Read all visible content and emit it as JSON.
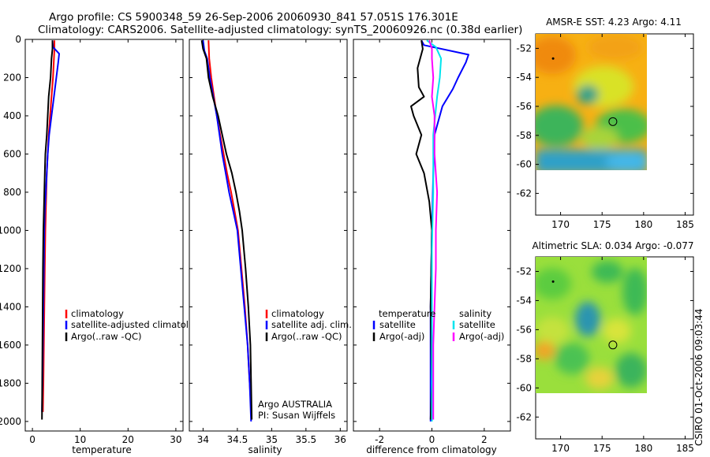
{
  "title": {
    "line1": "Argo profile: CS 5900348_59 26-Sep-2006 20060930_841 57.051S 176.301E",
    "line2": "Climatology: CARS2006. Satellite-adjusted climatology: synTS_20060926.nc (0.38d earlier)"
  },
  "colors": {
    "climatology": "#ff0000",
    "satellite": "#0000ff",
    "argo": "#000000",
    "sat_diff": "#00e5ee",
    "argo_adj": "#ff00ff"
  },
  "chart_data": [
    {
      "type": "line",
      "id": "temperature",
      "xlabel": "temperature",
      "ylim": [
        2050,
        0
      ],
      "xlim": [
        -1.5,
        31.5
      ],
      "xticks": [
        0,
        10,
        20,
        30
      ],
      "xtick_labels": [
        "0",
        "10",
        "20",
        "30"
      ],
      "yticks": [
        0,
        200,
        400,
        600,
        800,
        1000,
        1200,
        1400,
        1600,
        1800,
        2000
      ],
      "ytick_labels": [
        "0",
        "200",
        "400",
        "600",
        "800",
        "1000",
        "1200",
        "1400",
        "1600",
        "1800",
        "2000"
      ],
      "legend": [
        "climatology",
        "satellite-adjusted climatology",
        "Argo(..raw -QC)"
      ],
      "series": [
        {
          "name": "climatology",
          "color": "#ff0000",
          "points": [
            [
              4.6,
              5
            ],
            [
              4.6,
              50
            ],
            [
              4.5,
              100
            ],
            [
              4.3,
              200
            ],
            [
              4.0,
              300
            ],
            [
              3.7,
              400
            ],
            [
              3.4,
              500
            ],
            [
              3.2,
              600
            ],
            [
              3.0,
              700
            ],
            [
              2.9,
              800
            ],
            [
              2.8,
              900
            ],
            [
              2.7,
              1000
            ],
            [
              2.6,
              1200
            ],
            [
              2.5,
              1400
            ],
            [
              2.4,
              1600
            ],
            [
              2.3,
              1800
            ],
            [
              2.2,
              1950
            ]
          ]
        },
        {
          "name": "satellite-adjusted climatology",
          "color": "#0000ff",
          "points": [
            [
              4.2,
              5
            ],
            [
              4.3,
              40
            ],
            [
              5.6,
              75
            ],
            [
              5.4,
              120
            ],
            [
              5.0,
              200
            ],
            [
              4.5,
              300
            ],
            [
              4.0,
              400
            ],
            [
              3.5,
              500
            ],
            [
              3.2,
              600
            ],
            [
              3.0,
              700
            ],
            [
              2.8,
              800
            ],
            [
              2.6,
              900
            ],
            [
              2.5,
              1000
            ],
            [
              2.4,
              1200
            ],
            [
              2.3,
              1400
            ],
            [
              2.2,
              1600
            ],
            [
              2.1,
              1800
            ],
            [
              2.0,
              1950
            ]
          ]
        },
        {
          "name": "Argo(..raw -QC)",
          "color": "#000000",
          "points": [
            [
              4.2,
              5
            ],
            [
              4.2,
              50
            ],
            [
              4.0,
              100
            ],
            [
              3.8,
              200
            ],
            [
              3.4,
              300
            ],
            [
              3.2,
              400
            ],
            [
              3.0,
              500
            ],
            [
              2.7,
              600
            ],
            [
              2.6,
              700
            ],
            [
              2.5,
              800
            ],
            [
              2.4,
              900
            ],
            [
              2.3,
              1000
            ],
            [
              2.2,
              1200
            ],
            [
              2.15,
              1400
            ],
            [
              2.1,
              1600
            ],
            [
              2.05,
              1800
            ],
            [
              2.0,
              1990
            ]
          ]
        }
      ]
    },
    {
      "type": "line",
      "id": "salinity",
      "xlabel": "salinity",
      "ylim": [
        2050,
        0
      ],
      "xlim": [
        33.8,
        36.1
      ],
      "xticks": [
        34,
        34.5,
        35,
        35.5,
        36
      ],
      "xtick_labels": [
        "34",
        "34.5",
        "35",
        "35.5",
        "36"
      ],
      "legend": [
        "climatology",
        "satellite adj. clim.",
        "Argo(..raw -QC)"
      ],
      "annotations": [
        "Argo AUSTRALIA",
        "PI: Susan Wijffels"
      ],
      "series": [
        {
          "name": "climatology",
          "color": "#ff0000",
          "points": [
            [
              34.08,
              5
            ],
            [
              34.09,
              100
            ],
            [
              34.12,
              200
            ],
            [
              34.16,
              300
            ],
            [
              34.2,
              400
            ],
            [
              34.25,
              500
            ],
            [
              34.3,
              600
            ],
            [
              34.35,
              700
            ],
            [
              34.41,
              800
            ],
            [
              34.46,
              900
            ],
            [
              34.51,
              1000
            ],
            [
              34.56,
              1200
            ],
            [
              34.61,
              1400
            ],
            [
              34.65,
              1600
            ],
            [
              34.68,
              1800
            ],
            [
              34.7,
              1930
            ]
          ]
        },
        {
          "name": "satellite adj. clim.",
          "color": "#0000ff",
          "points": [
            [
              34.0,
              5
            ],
            [
              34.02,
              60
            ],
            [
              34.06,
              100
            ],
            [
              34.1,
              200
            ],
            [
              34.15,
              300
            ],
            [
              34.2,
              400
            ],
            [
              34.24,
              500
            ],
            [
              34.28,
              600
            ],
            [
              34.33,
              700
            ],
            [
              34.38,
              800
            ],
            [
              34.44,
              900
            ],
            [
              34.5,
              1000
            ],
            [
              34.55,
              1200
            ],
            [
              34.6,
              1400
            ],
            [
              34.65,
              1600
            ],
            [
              34.68,
              1800
            ],
            [
              34.7,
              2000
            ]
          ]
        },
        {
          "name": "Argo(..raw -QC)",
          "color": "#000000",
          "points": [
            [
              33.98,
              5
            ],
            [
              34.0,
              50
            ],
            [
              34.05,
              100
            ],
            [
              34.08,
              200
            ],
            [
              34.14,
              300
            ],
            [
              34.22,
              400
            ],
            [
              34.28,
              500
            ],
            [
              34.34,
              600
            ],
            [
              34.42,
              700
            ],
            [
              34.48,
              800
            ],
            [
              34.53,
              900
            ],
            [
              34.57,
              1000
            ],
            [
              34.62,
              1200
            ],
            [
              34.66,
              1400
            ],
            [
              34.69,
              1600
            ],
            [
              34.7,
              1800
            ],
            [
              34.71,
              1990
            ]
          ]
        }
      ]
    },
    {
      "type": "line",
      "id": "difference",
      "xlabel": "difference from climatology",
      "ylim": [
        2050,
        0
      ],
      "xlim": [
        -3.0,
        3.0
      ],
      "xticks": [
        -2,
        0,
        2
      ],
      "xtick_labels": [
        "-2",
        "0",
        "2"
      ],
      "legend_headers": [
        "temperature",
        "salinity"
      ],
      "legend_left": [
        "satellite",
        "Argo(-adj)"
      ],
      "legend_right": [
        "satellite",
        "Argo(-adj)"
      ],
      "series": [
        {
          "name": "temperature satellite",
          "color": "#0000ff",
          "points": [
            [
              -0.4,
              5
            ],
            [
              -0.3,
              30
            ],
            [
              1.4,
              80
            ],
            [
              1.3,
              120
            ],
            [
              1.0,
              200
            ],
            [
              0.8,
              260
            ],
            [
              0.4,
              350
            ],
            [
              0.1,
              500
            ],
            [
              0.05,
              700
            ],
            [
              0.0,
              1000
            ],
            [
              -0.05,
              1400
            ],
            [
              -0.05,
              1800
            ],
            [
              -0.05,
              2000
            ]
          ]
        },
        {
          "name": "Argo(-adj)",
          "color": "#000000",
          "points": [
            [
              -0.4,
              5
            ],
            [
              -0.35,
              50
            ],
            [
              -0.55,
              150
            ],
            [
              -0.5,
              250
            ],
            [
              -0.3,
              300
            ],
            [
              -0.8,
              350
            ],
            [
              -0.7,
              400
            ],
            [
              -0.4,
              500
            ],
            [
              -0.6,
              600
            ],
            [
              -0.3,
              700
            ],
            [
              -0.1,
              850
            ],
            [
              0.0,
              1000
            ],
            [
              -0.05,
              1400
            ],
            [
              0.0,
              1800
            ],
            [
              -0.05,
              1990
            ]
          ]
        },
        {
          "name": "salinity satellite",
          "color": "#00e5ee",
          "points": [
            [
              -0.2,
              5
            ],
            [
              0.15,
              40
            ],
            [
              0.35,
              100
            ],
            [
              0.3,
              200
            ],
            [
              0.2,
              300
            ],
            [
              0.05,
              500
            ],
            [
              0.05,
              800
            ],
            [
              0.0,
              1100
            ],
            [
              0.0,
              1500
            ],
            [
              0.0,
              1800
            ],
            [
              0.0,
              2000
            ]
          ]
        },
        {
          "name": "salinity Argo(-adj)",
          "color": "#ff00ff",
          "points": [
            [
              -0.1,
              5
            ],
            [
              0.0,
              50
            ],
            [
              0.0,
              100
            ],
            [
              0.05,
              200
            ],
            [
              0.0,
              300
            ],
            [
              0.1,
              400
            ],
            [
              0.1,
              600
            ],
            [
              0.2,
              800
            ],
            [
              0.15,
              1000
            ],
            [
              0.15,
              1200
            ],
            [
              0.1,
              1400
            ],
            [
              0.05,
              1600
            ],
            [
              0.05,
              1800
            ],
            [
              0.05,
              1990
            ]
          ]
        }
      ]
    },
    {
      "type": "heatmap",
      "id": "sst-map",
      "title": "AMSR-E SST: 4.23 Argo: 4.11",
      "xlim": [
        167,
        186
      ],
      "ylim": [
        -63.5,
        -51
      ],
      "xticks": [
        170,
        175,
        180,
        185
      ],
      "xtick_labels": [
        "170",
        "175",
        "180",
        "185"
      ],
      "yticks": [
        -52,
        -54,
        -56,
        -58,
        -60,
        -62
      ],
      "ytick_labels": [
        "-52",
        "-54",
        "-56",
        "-58",
        "-60",
        "-62"
      ],
      "data_extent": {
        "lon": [
          167,
          180
        ],
        "lat": [
          -60,
          -51
        ]
      },
      "argo_position": {
        "lon": 176.3,
        "lat": -57.05
      },
      "track_point": {
        "lon": 169.1,
        "lat": -52.7
      }
    },
    {
      "type": "heatmap",
      "id": "sla-map",
      "title": "Altimetric SLA: 0.034 Argo: -0.077",
      "xlim": [
        167,
        186
      ],
      "ylim": [
        -63.5,
        -51
      ],
      "xticks": [
        170,
        175,
        180,
        185
      ],
      "xtick_labels": [
        "170",
        "175",
        "180",
        "185"
      ],
      "yticks": [
        -52,
        -54,
        -56,
        -58,
        -60,
        -62
      ],
      "ytick_labels": [
        "-52",
        "-54",
        "-56",
        "-58",
        "-60",
        "-62"
      ],
      "data_extent": {
        "lon": [
          167,
          180
        ],
        "lat": [
          -60,
          -51
        ]
      },
      "argo_position": {
        "lon": 176.3,
        "lat": -57.05
      },
      "track_point": {
        "lon": 169.1,
        "lat": -52.7
      }
    }
  ],
  "credit": "CSIRO 01-Oct-2006 09:03:44"
}
